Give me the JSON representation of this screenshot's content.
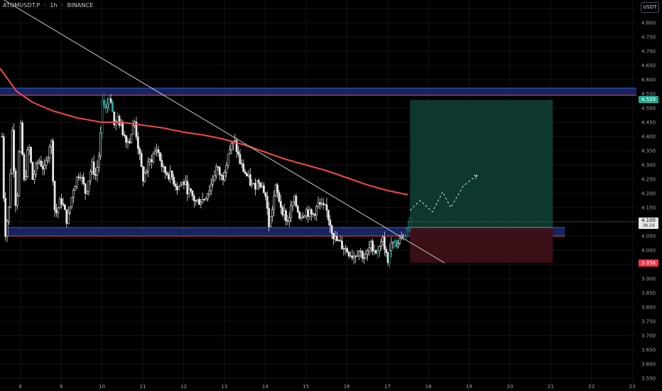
{
  "header": {
    "symbol": "ATOMUSDT.P",
    "interval": "1h",
    "exchange": "BINANCE",
    "separator": "·",
    "currency_button": "USDT"
  },
  "colors": {
    "background": "#000000",
    "candle": "#e6e6e6",
    "candle_green": "#26a69a",
    "ma_line": "#f0474c",
    "trendline": "#d0d0d0",
    "zone_fill": "#1c2a6e",
    "zone_border_top": "#3a5bd9",
    "zone_border_bottom": "#f0474c",
    "target_fill": "#0f3a2f",
    "stop_fill": "#3d1016",
    "axis_text": "#a0a3ab"
  },
  "price_tags": {
    "target": "4.529",
    "current": "4.100",
    "countdown": "38:29",
    "stop": "3.956"
  },
  "chart_data": {
    "type": "candlestick",
    "title": "ATOMUSDT.P · 1h · BINANCE",
    "xlabel": "",
    "ylabel": "",
    "x_ticks": [
      "8",
      "9",
      "10",
      "11",
      "12",
      "13",
      "14",
      "15",
      "16",
      "17",
      "18",
      "19",
      "20",
      "21",
      "22",
      "23"
    ],
    "y_ticks": [
      "4.850",
      "4.800",
      "4.750",
      "4.700",
      "4.650",
      "4.600",
      "4.550",
      "4.500",
      "4.450",
      "4.400",
      "4.350",
      "4.300",
      "4.250",
      "4.200",
      "4.150",
      "4.100",
      "4.050",
      "4.000",
      "3.950",
      "3.900",
      "3.850",
      "3.800",
      "3.750",
      "3.700",
      "3.650",
      "3.600",
      "3.550"
    ],
    "ylim": [
      3.53,
      4.88
    ],
    "xlim": [
      7.5,
      23.1
    ],
    "grid": true,
    "price_path": [
      [
        7.55,
        4.4
      ],
      [
        7.62,
        4.05
      ],
      [
        7.72,
        4.15
      ],
      [
        7.8,
        4.42
      ],
      [
        7.9,
        4.12
      ],
      [
        8.0,
        4.45
      ],
      [
        8.1,
        4.22
      ],
      [
        8.2,
        4.38
      ],
      [
        8.3,
        4.25
      ],
      [
        8.45,
        4.32
      ],
      [
        8.6,
        4.28
      ],
      [
        8.75,
        4.4
      ],
      [
        8.85,
        4.12
      ],
      [
        9.0,
        4.18
      ],
      [
        9.15,
        4.1
      ],
      [
        9.3,
        4.22
      ],
      [
        9.45,
        4.28
      ],
      [
        9.6,
        4.2
      ],
      [
        9.75,
        4.3
      ],
      [
        9.85,
        4.26
      ],
      [
        9.95,
        4.36
      ],
      [
        10.02,
        4.54
      ],
      [
        10.1,
        4.5
      ],
      [
        10.2,
        4.55
      ],
      [
        10.3,
        4.44
      ],
      [
        10.4,
        4.46
      ],
      [
        10.5,
        4.42
      ],
      [
        10.65,
        4.38
      ],
      [
        10.8,
        4.45
      ],
      [
        11.0,
        4.25
      ],
      [
        11.2,
        4.32
      ],
      [
        11.35,
        4.36
      ],
      [
        11.5,
        4.28
      ],
      [
        11.7,
        4.26
      ],
      [
        11.85,
        4.22
      ],
      [
        12.0,
        4.24
      ],
      [
        12.15,
        4.2
      ],
      [
        12.3,
        4.17
      ],
      [
        12.5,
        4.18
      ],
      [
        12.65,
        4.22
      ],
      [
        12.8,
        4.29
      ],
      [
        12.95,
        4.25
      ],
      [
        13.1,
        4.35
      ],
      [
        13.25,
        4.38
      ],
      [
        13.4,
        4.3
      ],
      [
        13.55,
        4.26
      ],
      [
        13.7,
        4.22
      ],
      [
        13.85,
        4.25
      ],
      [
        14.0,
        4.2
      ],
      [
        14.1,
        4.08
      ],
      [
        14.25,
        4.22
      ],
      [
        14.4,
        4.15
      ],
      [
        14.55,
        4.1
      ],
      [
        14.7,
        4.18
      ],
      [
        14.85,
        4.12
      ],
      [
        15.0,
        4.14
      ],
      [
        15.15,
        4.12
      ],
      [
        15.3,
        4.16
      ],
      [
        15.5,
        4.14
      ],
      [
        15.7,
        4.04
      ],
      [
        15.85,
        4.02
      ],
      [
        16.0,
        4.0
      ],
      [
        16.15,
        3.98
      ],
      [
        16.3,
        4.0
      ],
      [
        16.45,
        3.97
      ],
      [
        16.6,
        4.02
      ],
      [
        16.75,
        3.99
      ],
      [
        16.9,
        4.04
      ],
      [
        17.0,
        3.95
      ],
      [
        17.1,
        4.05
      ],
      [
        17.25,
        4.02
      ],
      [
        17.4,
        4.06
      ],
      [
        17.55,
        4.1
      ]
    ],
    "ma_line": [
      [
        7.5,
        4.64
      ],
      [
        7.7,
        4.6
      ],
      [
        7.9,
        4.56
      ],
      [
        8.3,
        4.52
      ],
      [
        8.8,
        4.49
      ],
      [
        9.4,
        4.465
      ],
      [
        10.0,
        4.45
      ],
      [
        10.5,
        4.45
      ],
      [
        11.0,
        4.44
      ],
      [
        11.5,
        4.43
      ],
      [
        12.0,
        4.415
      ],
      [
        12.5,
        4.405
      ],
      [
        13.0,
        4.39
      ],
      [
        13.5,
        4.37
      ],
      [
        14.0,
        4.345
      ],
      [
        14.5,
        4.32
      ],
      [
        15.0,
        4.3
      ],
      [
        15.5,
        4.28
      ],
      [
        16.0,
        4.255
      ],
      [
        16.5,
        4.23
      ],
      [
        17.0,
        4.21
      ],
      [
        17.5,
        4.195
      ]
    ],
    "trendline": [
      [
        7.6,
        4.88
      ],
      [
        18.4,
        3.955
      ]
    ],
    "resistance_zone": {
      "x": [
        7.5,
        23.1
      ],
      "y": [
        4.545,
        4.57
      ]
    },
    "support_zone": {
      "x": [
        7.62,
        21.35
      ],
      "y": [
        4.05,
        4.08
      ]
    },
    "long_position": {
      "x": [
        17.55,
        21.05
      ],
      "entry": 4.08,
      "target": 4.529,
      "stop": 3.956
    },
    "projection": [
      [
        17.55,
        4.14
      ],
      [
        17.8,
        4.175
      ],
      [
        18.1,
        4.135
      ],
      [
        18.35,
        4.205
      ],
      [
        18.55,
        4.15
      ],
      [
        18.85,
        4.225
      ],
      [
        19.2,
        4.265
      ]
    ],
    "current_price": 4.1
  }
}
